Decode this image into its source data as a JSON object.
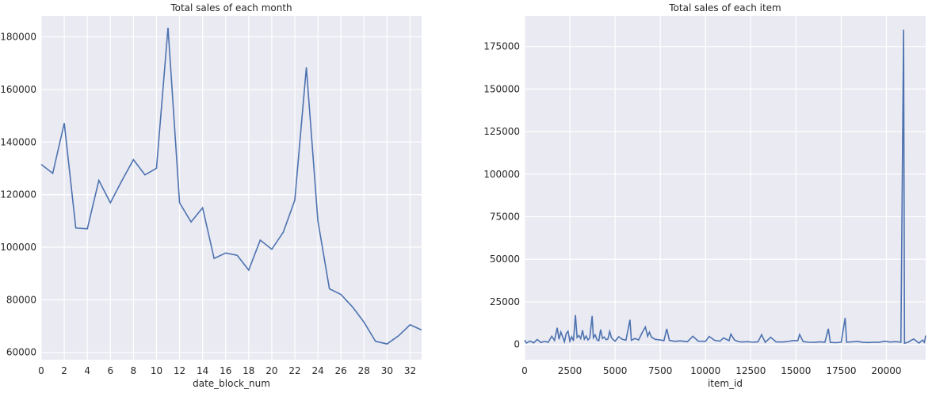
{
  "chart_data": [
    {
      "type": "line",
      "title": "Total sales of each month",
      "xlabel": "date_block_num",
      "ylabel": "",
      "grid": true,
      "xlim": [
        0,
        33
      ],
      "ylim": [
        57200,
        188000
      ],
      "x_ticks": [
        0,
        2,
        4,
        6,
        8,
        10,
        12,
        14,
        16,
        18,
        20,
        22,
        24,
        26,
        28,
        30,
        32
      ],
      "y_ticks": [
        60000,
        80000,
        100000,
        120000,
        140000,
        160000,
        180000
      ],
      "color": "#4c72b0",
      "series": [
        {
          "x": [
            0,
            1,
            2,
            3,
            4,
            5,
            6,
            7,
            8,
            9,
            10,
            11,
            12,
            13,
            14,
            15,
            16,
            17,
            18,
            19,
            20,
            21,
            22,
            23,
            24,
            25,
            26,
            27,
            28,
            29,
            30,
            31,
            32,
            33
          ],
          "values": [
            131500,
            128100,
            147200,
            107300,
            107000,
            125400,
            116900,
            125300,
            133300,
            127500,
            130000,
            183500,
            116900,
            109600,
            115000,
            95700,
            97800,
            96900,
            91300,
            102700,
            99200,
            105700,
            117900,
            168400,
            110100,
            84200,
            82000,
            77300,
            71500,
            64200,
            63200,
            66300,
            70500,
            68500
          ]
        }
      ]
    },
    {
      "type": "line",
      "title": "Total sales of each item",
      "xlabel": "item_id",
      "ylabel": "",
      "grid": true,
      "xlim": [
        0,
        22169
      ],
      "ylim": [
        -9000,
        193000
      ],
      "x_ticks": [
        0,
        2500,
        5000,
        7500,
        10000,
        12500,
        15000,
        17500,
        20000
      ],
      "y_ticks": [
        0,
        25000,
        50000,
        75000,
        100000,
        125000,
        150000,
        175000
      ],
      "color": "#4c72b0",
      "series": [
        {
          "x": [
            0,
            100,
            300,
            500,
            700,
            900,
            1100,
            1300,
            1500,
            1650,
            1800,
            1900,
            2000,
            2200,
            2300,
            2400,
            2500,
            2600,
            2700,
            2808,
            2900,
            3000,
            3100,
            3200,
            3300,
            3400,
            3500,
            3600,
            3732,
            3800,
            3900,
            4000,
            4100,
            4200,
            4300,
            4400,
            4500,
            4600,
            4700,
            4800,
            4900,
            5000,
            5200,
            5400,
            5600,
            5822,
            5900,
            6100,
            6300,
            6500,
            6675,
            6800,
            6900,
            7000,
            7200,
            7500,
            7700,
            7856,
            8000,
            8300,
            8600,
            9000,
            9300,
            9600,
            10000,
            10200,
            10500,
            10800,
            11000,
            11300,
            11400,
            11600,
            11800,
            12000,
            12300,
            12600,
            12900,
            13100,
            13300,
            13600,
            13900,
            14200,
            14500,
            14800,
            15100,
            15200,
            15400,
            15700,
            16000,
            16300,
            16600,
            16787,
            16900,
            17200,
            17500,
            17717,
            17800,
            18100,
            18400,
            18700,
            19000,
            19300,
            19600,
            19900,
            20200,
            20500,
            20800,
            20949,
            21000,
            21200,
            21500,
            21800,
            22000,
            22100,
            22169
          ],
          "values": [
            2500,
            800,
            2000,
            900,
            2900,
            1100,
            1800,
            1200,
            4800,
            2300,
            9800,
            3000,
            7300,
            1500,
            6400,
            7700,
            1900,
            4500,
            2100,
            17200,
            4100,
            5200,
            3400,
            8300,
            3100,
            4900,
            2600,
            3800,
            16700,
            3900,
            5600,
            2700,
            2200,
            8700,
            3500,
            4300,
            2800,
            3100,
            7600,
            3900,
            2800,
            1900,
            4500,
            3000,
            2500,
            14500,
            2400,
            3500,
            2600,
            7000,
            10200,
            4800,
            7200,
            4400,
            3000,
            2600,
            2200,
            9100,
            2400,
            1800,
            2100,
            1600,
            4800,
            1900,
            1800,
            4700,
            2400,
            1900,
            3800,
            2200,
            6000,
            2600,
            1700,
            1400,
            1600,
            1300,
            1500,
            5700,
            1200,
            4200,
            1500,
            1400,
            1600,
            2200,
            2200,
            5800,
            1600,
            1300,
            1200,
            1500,
            1300,
            9200,
            1200,
            1000,
            1300,
            15500,
            1300,
            1500,
            1800,
            1200,
            1100,
            1300,
            1200,
            1900,
            1400,
            1600,
            1300,
            184800,
            700,
            1300,
            3200,
            800,
            2500,
            1200,
            5200
          ]
        }
      ]
    }
  ]
}
